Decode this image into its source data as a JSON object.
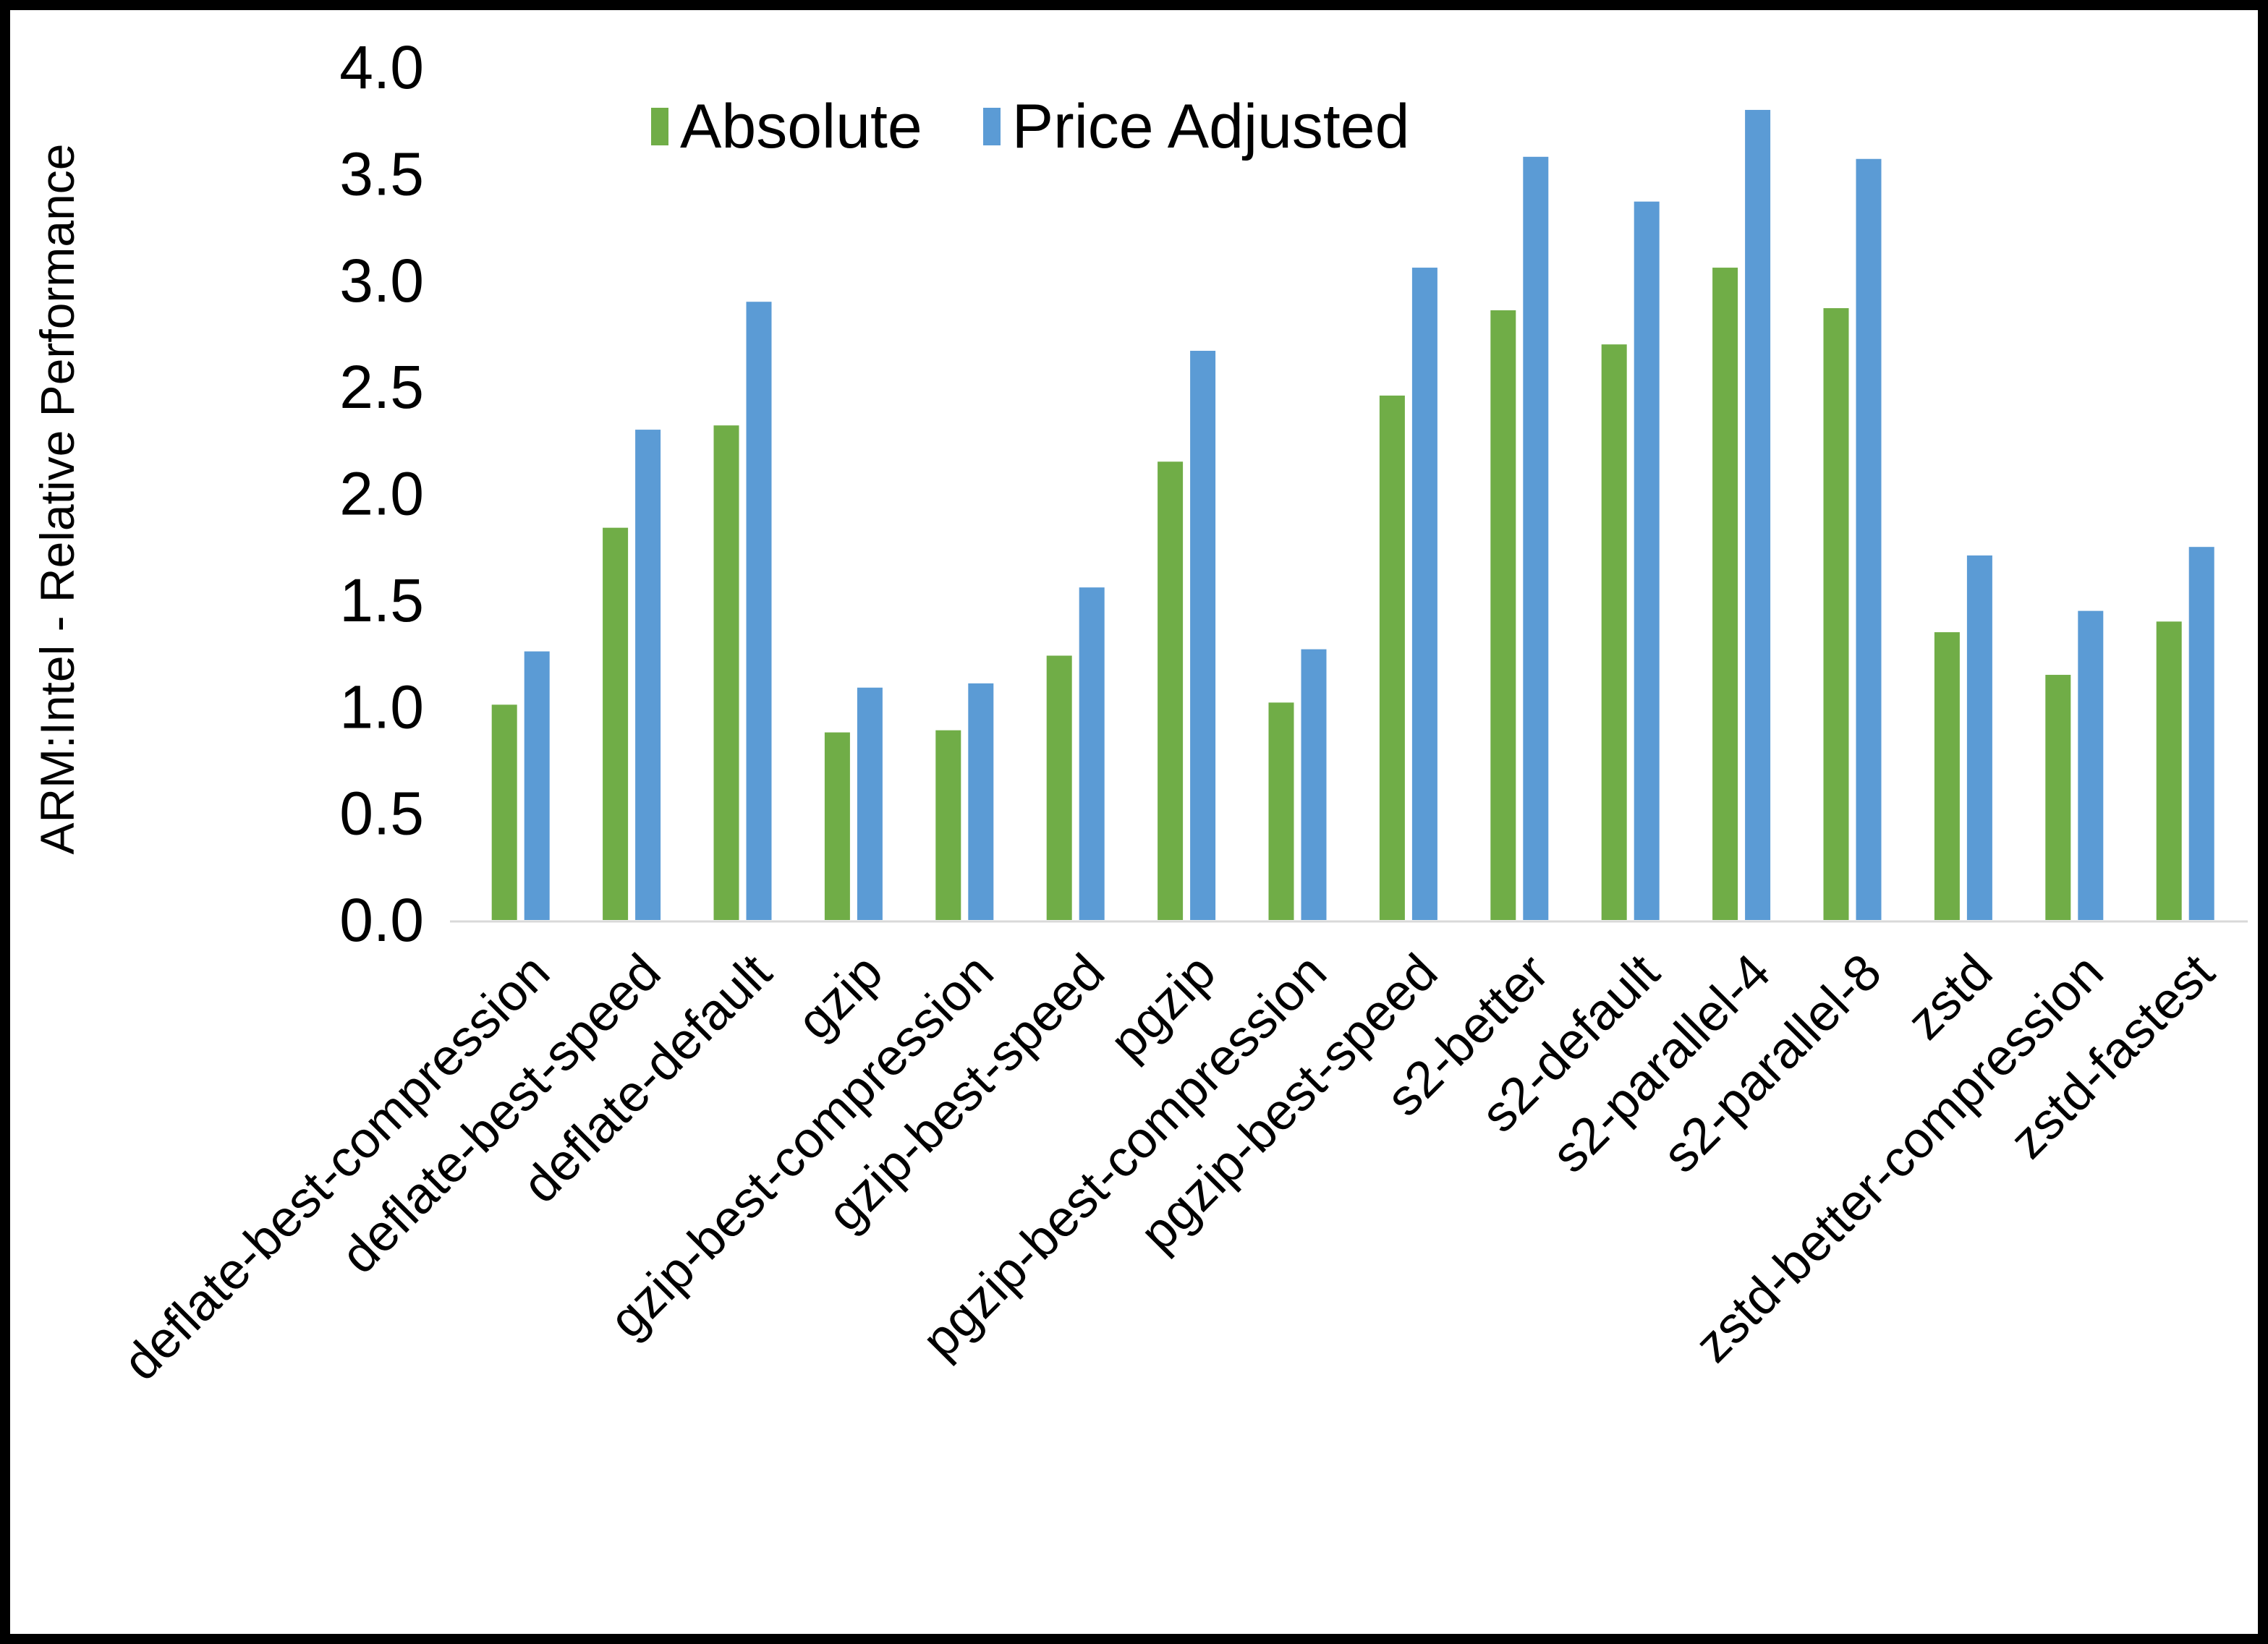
{
  "chart_data": {
    "type": "bar",
    "title": "",
    "xlabel": "",
    "ylabel": "ARM:Intel - Relative Performance",
    "ylim": [
      0.0,
      4.0
    ],
    "y_tick_labels": [
      "0.0",
      "0.5",
      "1.0",
      "1.5",
      "2.0",
      "2.5",
      "3.0",
      "3.5",
      "4.0"
    ],
    "grid": false,
    "legend_position": "top-center",
    "background_color": "#ffffff",
    "frame_color": "#000000",
    "axis_line_color": "#d9d9d9",
    "text_color": "#000000",
    "categories": [
      "deflate-best-compression",
      "deflate-best-speed",
      "deflate-default",
      "gzip",
      "gzip-best-compression",
      "gzip-best-speed",
      "pgzip",
      "pgzip-best-compression",
      "pgzip-best-speed",
      "s2-better",
      "s2-default",
      "s2-parallel-4",
      "s2-parallel-8",
      "zstd",
      "zstd-better-compression",
      "zstd-fastest"
    ],
    "series": [
      {
        "name": "Absolute",
        "color": "#70AD47",
        "values": [
          1.01,
          1.84,
          2.32,
          0.88,
          0.89,
          1.24,
          2.15,
          1.02,
          2.46,
          2.86,
          2.7,
          3.06,
          2.87,
          1.35,
          1.15,
          1.4
        ]
      },
      {
        "name": "Price Adjusted",
        "color": "#5B9BD5",
        "values": [
          1.26,
          2.3,
          2.9,
          1.09,
          1.11,
          1.56,
          2.67,
          1.27,
          3.06,
          3.58,
          3.37,
          3.8,
          3.57,
          1.71,
          1.45,
          1.75
        ]
      }
    ]
  }
}
